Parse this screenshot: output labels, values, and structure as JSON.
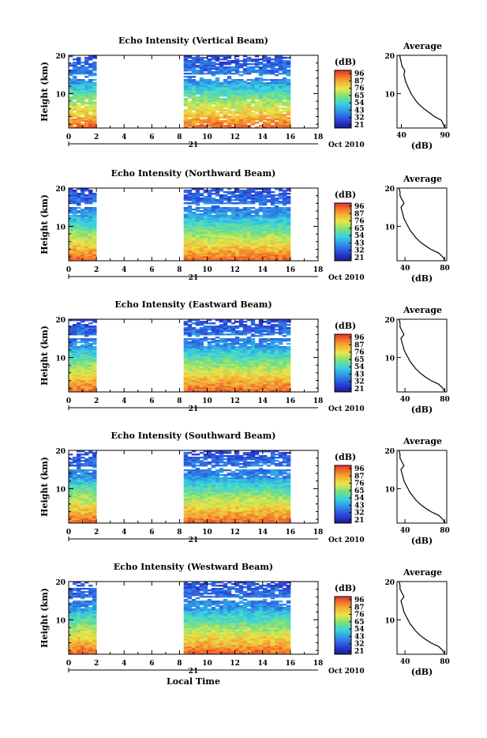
{
  "chart_data": [
    {
      "type": "heatmap",
      "title": "Echo Intensity (Vertical Beam)",
      "ylabel": "Height (km)",
      "x_ticks": [
        0,
        2,
        4,
        6,
        8,
        10,
        12,
        14,
        16,
        18
      ],
      "y_ticks": [
        10,
        20
      ],
      "xlim": [
        0,
        18
      ],
      "ylim": [
        1,
        20
      ],
      "date_day": "21",
      "date_label": "Oct 2010",
      "data_segments": [
        [
          0,
          2
        ],
        [
          8.3,
          16
        ]
      ],
      "colorbar": {
        "label": "(dB)",
        "ticks": [
          96,
          87,
          76,
          65,
          54,
          43,
          32,
          21
        ]
      },
      "profile": {
        "title": "Average",
        "xlabel": "(dB)",
        "x_ticks": [
          40,
          90
        ],
        "xlim": [
          35,
          92
        ],
        "y_ticks": [
          10,
          20
        ],
        "heights": [
          1,
          2,
          3,
          4,
          5,
          6,
          7,
          8,
          9,
          10,
          11,
          12,
          13,
          14,
          15,
          16,
          17,
          18,
          19,
          20
        ],
        "values": [
          90,
          88,
          86,
          78,
          72,
          66,
          61,
          57,
          54,
          51,
          49,
          47,
          45,
          44,
          43,
          44,
          41,
          40,
          39,
          38
        ]
      }
    },
    {
      "type": "heatmap",
      "title": "Echo Intensity (Northward Beam)",
      "ylabel": "Height (km)",
      "x_ticks": [
        0,
        2,
        4,
        6,
        8,
        10,
        12,
        14,
        16,
        18
      ],
      "y_ticks": [
        10,
        20
      ],
      "xlim": [
        0,
        18
      ],
      "ylim": [
        1,
        20
      ],
      "date_day": "21",
      "date_label": "Oct 2010",
      "data_segments": [
        [
          0,
          2
        ],
        [
          8.3,
          16
        ]
      ],
      "colorbar": {
        "label": "(dB)",
        "ticks": [
          96,
          87,
          76,
          65,
          54,
          43,
          32,
          21
        ]
      },
      "profile": {
        "title": "Average",
        "xlabel": "(dB)",
        "x_ticks": [
          40,
          80
        ],
        "xlim": [
          32,
          82
        ],
        "y_ticks": [
          10,
          20
        ],
        "heights": [
          1,
          2,
          3,
          4,
          5,
          6,
          7,
          8,
          9,
          10,
          11,
          12,
          13,
          14,
          15,
          16,
          17,
          18,
          19,
          20
        ],
        "values": [
          80,
          78,
          74,
          66,
          60,
          55,
          51,
          48,
          45,
          43,
          41,
          39,
          38,
          37,
          36,
          39,
          37,
          35,
          35,
          34
        ]
      }
    },
    {
      "type": "heatmap",
      "title": "Echo Intensity (Eastward Beam)",
      "ylabel": "Height (km)",
      "x_ticks": [
        0,
        2,
        4,
        6,
        8,
        10,
        12,
        14,
        16,
        18
      ],
      "y_ticks": [
        10,
        20
      ],
      "xlim": [
        0,
        18
      ],
      "ylim": [
        1,
        20
      ],
      "date_day": "21",
      "date_label": "Oct 2010",
      "data_segments": [
        [
          0,
          2
        ],
        [
          8.3,
          16
        ]
      ],
      "colorbar": {
        "label": "(dB)",
        "ticks": [
          96,
          87,
          76,
          65,
          54,
          43,
          32,
          21
        ]
      },
      "profile": {
        "title": "Average",
        "xlabel": "(dB)",
        "x_ticks": [
          40,
          80
        ],
        "xlim": [
          32,
          82
        ],
        "y_ticks": [
          10,
          20
        ],
        "heights": [
          1,
          2,
          3,
          4,
          5,
          6,
          7,
          8,
          9,
          10,
          11,
          12,
          13,
          14,
          15,
          16,
          17,
          18,
          19,
          20
        ],
        "values": [
          80,
          78,
          74,
          66,
          60,
          55,
          51,
          48,
          45,
          43,
          41,
          39,
          38,
          37,
          36,
          39,
          37,
          35,
          35,
          34
        ]
      }
    },
    {
      "type": "heatmap",
      "title": "Echo Intensity (Southward Beam)",
      "ylabel": "Height (km)",
      "x_ticks": [
        0,
        2,
        4,
        6,
        8,
        10,
        12,
        14,
        16,
        18
      ],
      "y_ticks": [
        10,
        20
      ],
      "xlim": [
        0,
        18
      ],
      "ylim": [
        1,
        20
      ],
      "date_day": "21",
      "date_label": "Oct 2010",
      "data_segments": [
        [
          0,
          2
        ],
        [
          8.3,
          16
        ]
      ],
      "colorbar": {
        "label": "(dB)",
        "ticks": [
          96,
          87,
          76,
          65,
          54,
          43,
          32,
          21
        ]
      },
      "profile": {
        "title": "Average",
        "xlabel": "(dB)",
        "x_ticks": [
          40,
          80
        ],
        "xlim": [
          32,
          82
        ],
        "y_ticks": [
          10,
          20
        ],
        "heights": [
          1,
          2,
          3,
          4,
          5,
          6,
          7,
          8,
          9,
          10,
          11,
          12,
          13,
          14,
          15,
          16,
          17,
          18,
          19,
          20
        ],
        "values": [
          80,
          78,
          74,
          66,
          60,
          55,
          51,
          48,
          45,
          43,
          41,
          39,
          38,
          37,
          36,
          39,
          37,
          35,
          35,
          34
        ]
      }
    },
    {
      "type": "heatmap",
      "title": "Echo Intensity (Westward Beam)",
      "ylabel": "Height (km)",
      "xlabel": "Local Time",
      "x_ticks": [
        0,
        2,
        4,
        6,
        8,
        10,
        12,
        14,
        16,
        18
      ],
      "y_ticks": [
        10,
        20
      ],
      "xlim": [
        0,
        18
      ],
      "ylim": [
        1,
        20
      ],
      "date_day": "21",
      "date_label": "Oct 2010",
      "data_segments": [
        [
          0,
          2
        ],
        [
          8.3,
          16
        ]
      ],
      "colorbar": {
        "label": "(dB)",
        "ticks": [
          96,
          87,
          76,
          65,
          54,
          43,
          32,
          21
        ]
      },
      "profile": {
        "title": "Average",
        "xlabel": "(dB)",
        "x_ticks": [
          40,
          80
        ],
        "xlim": [
          32,
          82
        ],
        "y_ticks": [
          10,
          20
        ],
        "heights": [
          1,
          2,
          3,
          4,
          5,
          6,
          7,
          8,
          9,
          10,
          11,
          12,
          13,
          14,
          15,
          16,
          17,
          18,
          19,
          20
        ],
        "values": [
          80,
          78,
          74,
          66,
          60,
          55,
          51,
          48,
          45,
          43,
          41,
          39,
          38,
          37,
          36,
          39,
          37,
          35,
          35,
          34
        ]
      }
    }
  ]
}
